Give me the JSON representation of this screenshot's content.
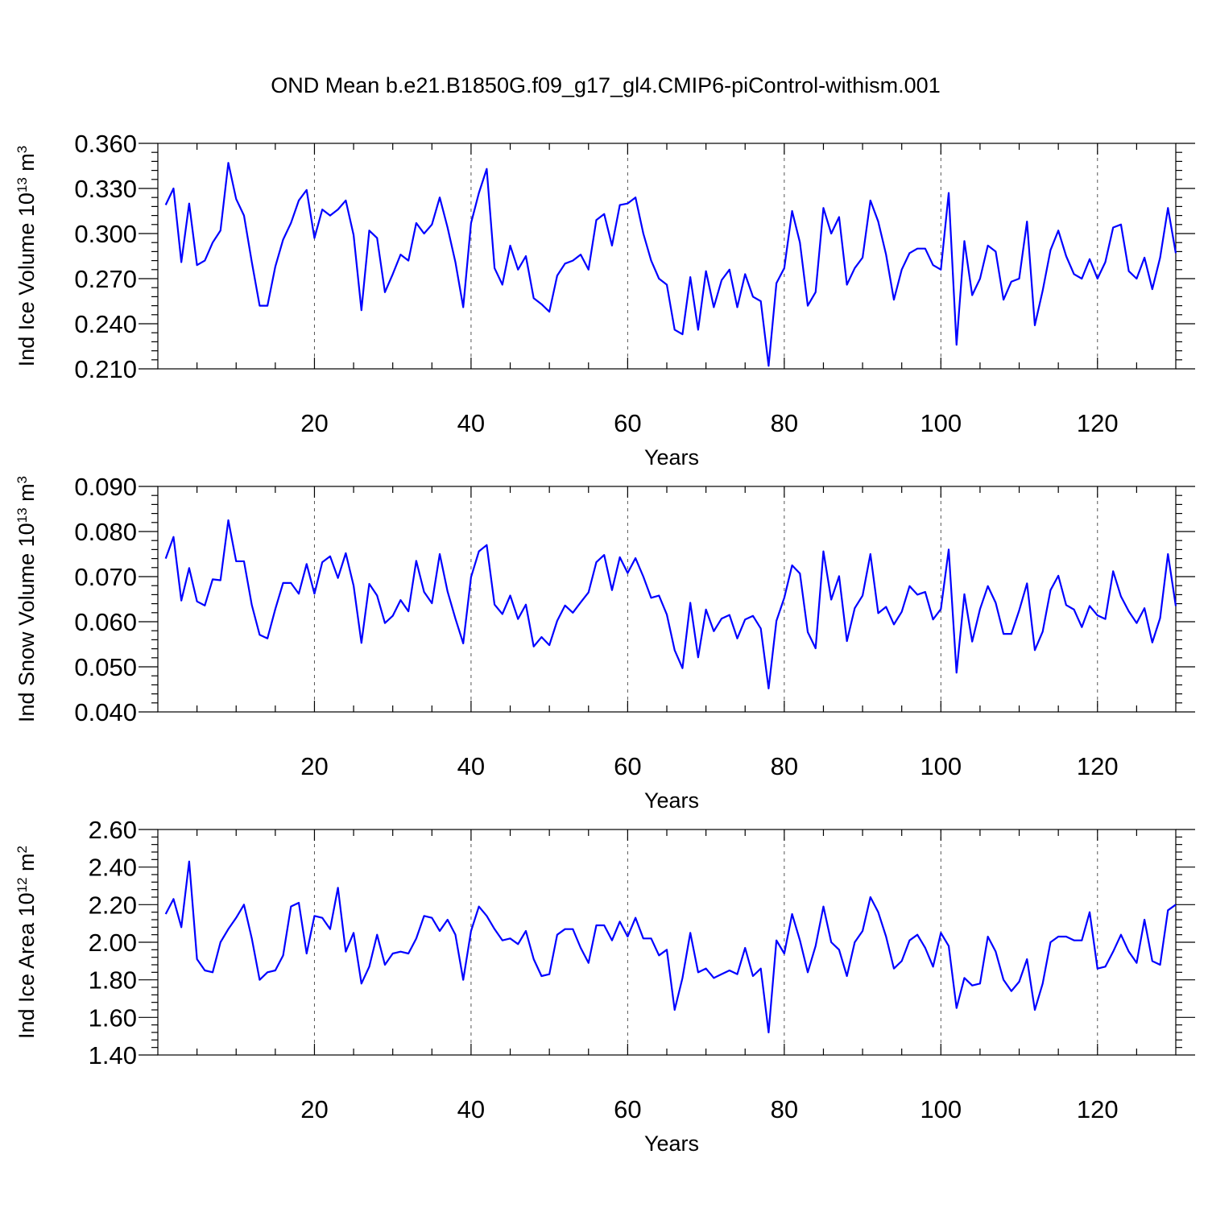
{
  "title": "OND Mean b.e21.B1850G.f09_g17_gl4.CMIP6-piControl-withism.001",
  "colors": {
    "line": "#0000ff",
    "axis": "#000000",
    "grid": "#555555"
  },
  "chart_data": [
    {
      "type": "line",
      "xlabel": "Years",
      "ylabel": {
        "base": "Ind Ice Volume 10",
        "exp1": "13",
        "unit": " m",
        "exp2": "3"
      },
      "xlim": [
        0,
        130
      ],
      "ylim": [
        0.21,
        0.36
      ],
      "xticks": [
        20,
        40,
        60,
        80,
        100,
        120
      ],
      "yticks": [
        0.21,
        0.24,
        0.27,
        0.3,
        0.33,
        0.36
      ],
      "ytick_labels": [
        "0.210",
        "0.240",
        "0.270",
        "0.300",
        "0.330",
        "0.360"
      ],
      "grid": "vertical dashed at major x ticks",
      "x_start": 1,
      "values": [
        0.319,
        0.33,
        0.281,
        0.32,
        0.279,
        0.282,
        0.294,
        0.302,
        0.347,
        0.323,
        0.312,
        0.281,
        0.252,
        0.252,
        0.278,
        0.296,
        0.307,
        0.322,
        0.329,
        0.297,
        0.316,
        0.312,
        0.316,
        0.322,
        0.299,
        0.249,
        0.302,
        0.297,
        0.261,
        0.273,
        0.286,
        0.282,
        0.307,
        0.3,
        0.306,
        0.324,
        0.304,
        0.281,
        0.251,
        0.307,
        0.327,
        0.343,
        0.277,
        0.266,
        0.292,
        0.276,
        0.285,
        0.257,
        0.253,
        0.248,
        0.272,
        0.28,
        0.282,
        0.286,
        0.276,
        0.309,
        0.313,
        0.292,
        0.319,
        0.32,
        0.324,
        0.3,
        0.282,
        0.27,
        0.266,
        0.236,
        0.233,
        0.271,
        0.236,
        0.275,
        0.251,
        0.269,
        0.276,
        0.251,
        0.273,
        0.258,
        0.255,
        0.212,
        0.267,
        0.277,
        0.315,
        0.294,
        0.252,
        0.261,
        0.317,
        0.3,
        0.311,
        0.266,
        0.277,
        0.284,
        0.322,
        0.308,
        0.286,
        0.256,
        0.276,
        0.287,
        0.29,
        0.29,
        0.279,
        0.276,
        0.327,
        0.226,
        0.295,
        0.259,
        0.27,
        0.292,
        0.288,
        0.256,
        0.268,
        0.27,
        0.308,
        0.239,
        0.262,
        0.289,
        0.302,
        0.285,
        0.273,
        0.27,
        0.283,
        0.27,
        0.281,
        0.304,
        0.306,
        0.275,
        0.27,
        0.284,
        0.263,
        0.284,
        0.317,
        0.287
      ]
    },
    {
      "type": "line",
      "xlabel": "Years",
      "ylabel": {
        "base": "Ind Snow Volume 10",
        "exp1": "13",
        "unit": " m",
        "exp2": "3"
      },
      "xlim": [
        0,
        130
      ],
      "ylim": [
        0.04,
        0.09
      ],
      "xticks": [
        20,
        40,
        60,
        80,
        100,
        120
      ],
      "yticks": [
        0.04,
        0.05,
        0.06,
        0.07,
        0.08,
        0.09
      ],
      "ytick_labels": [
        "0.040",
        "0.050",
        "0.060",
        "0.070",
        "0.080",
        "0.090"
      ],
      "grid": "vertical dashed at major x ticks",
      "x_start": 1,
      "values": [
        0.074,
        0.0788,
        0.0647,
        0.0719,
        0.0645,
        0.0636,
        0.0694,
        0.0692,
        0.0825,
        0.0734,
        0.0734,
        0.0637,
        0.0571,
        0.0563,
        0.0628,
        0.0686,
        0.0686,
        0.0662,
        0.0728,
        0.0662,
        0.0732,
        0.0745,
        0.0697,
        0.0752,
        0.068,
        0.0553,
        0.0684,
        0.0658,
        0.0597,
        0.0613,
        0.0648,
        0.0623,
        0.0735,
        0.0666,
        0.0641,
        0.075,
        0.0667,
        0.0607,
        0.0552,
        0.0699,
        0.0756,
        0.077,
        0.0638,
        0.0617,
        0.0658,
        0.0606,
        0.0638,
        0.0545,
        0.0566,
        0.0548,
        0.0602,
        0.0636,
        0.062,
        0.0643,
        0.0665,
        0.0732,
        0.0748,
        0.067,
        0.0743,
        0.0708,
        0.0741,
        0.07,
        0.0653,
        0.0658,
        0.0616,
        0.0537,
        0.0497,
        0.0642,
        0.0521,
        0.0627,
        0.0579,
        0.0607,
        0.0615,
        0.0563,
        0.0605,
        0.0613,
        0.0585,
        0.0452,
        0.0602,
        0.0653,
        0.0725,
        0.0707,
        0.0577,
        0.0541,
        0.0756,
        0.0649,
        0.0701,
        0.0557,
        0.063,
        0.0658,
        0.075,
        0.0619,
        0.0633,
        0.0594,
        0.0622,
        0.0679,
        0.066,
        0.0666,
        0.0605,
        0.0628,
        0.076,
        0.0487,
        0.0661,
        0.0556,
        0.0628,
        0.0679,
        0.0642,
        0.0573,
        0.0573,
        0.0625,
        0.0685,
        0.0537,
        0.0578,
        0.067,
        0.0702,
        0.0637,
        0.0627,
        0.0588,
        0.0635,
        0.0614,
        0.0606,
        0.0712,
        0.0656,
        0.0623,
        0.0597,
        0.063,
        0.0554,
        0.0608,
        0.075,
        0.0635
      ]
    },
    {
      "type": "line",
      "xlabel": "Years",
      "ylabel": {
        "base": "Ind Ice Area 10",
        "exp1": "12",
        "unit": " m",
        "exp2": "2"
      },
      "xlim": [
        0,
        130
      ],
      "ylim": [
        1.4,
        2.6
      ],
      "xticks": [
        20,
        40,
        60,
        80,
        100,
        120
      ],
      "yticks": [
        1.4,
        1.6,
        1.8,
        2.0,
        2.2,
        2.4,
        2.6
      ],
      "ytick_labels": [
        "1.40",
        "1.60",
        "1.80",
        "2.00",
        "2.20",
        "2.40",
        "2.60"
      ],
      "grid": "vertical dashed at major x ticks",
      "x_start": 1,
      "values": [
        2.15,
        2.23,
        2.08,
        2.43,
        1.91,
        1.85,
        1.84,
        2.0,
        2.07,
        2.13,
        2.2,
        2.02,
        1.8,
        1.84,
        1.85,
        1.93,
        2.19,
        2.21,
        1.94,
        2.14,
        2.13,
        2.07,
        2.29,
        1.95,
        2.05,
        1.78,
        1.87,
        2.04,
        1.88,
        1.94,
        1.95,
        1.94,
        2.02,
        2.14,
        2.13,
        2.06,
        2.12,
        2.04,
        1.8,
        2.06,
        2.19,
        2.14,
        2.07,
        2.01,
        2.02,
        1.99,
        2.06,
        1.91,
        1.82,
        1.83,
        2.04,
        2.07,
        2.07,
        1.97,
        1.89,
        2.09,
        2.09,
        2.01,
        2.11,
        2.03,
        2.13,
        2.02,
        2.02,
        1.93,
        1.96,
        1.64,
        1.81,
        2.05,
        1.84,
        1.86,
        1.81,
        1.83,
        1.85,
        1.83,
        1.97,
        1.82,
        1.86,
        1.52,
        2.01,
        1.94,
        2.15,
        2.01,
        1.84,
        1.98,
        2.19,
        2.0,
        1.96,
        1.82,
        2.0,
        2.06,
        2.24,
        2.16,
        2.03,
        1.86,
        1.9,
        2.01,
        2.04,
        1.97,
        1.87,
        2.05,
        1.98,
        1.65,
        1.81,
        1.77,
        1.78,
        2.03,
        1.95,
        1.8,
        1.74,
        1.79,
        1.91,
        1.64,
        1.78,
        2.0,
        2.03,
        2.03,
        2.01,
        2.01,
        2.16,
        1.86,
        1.87,
        1.95,
        2.04,
        1.95,
        1.89,
        2.12,
        1.9,
        1.88,
        2.17,
        2.2
      ]
    }
  ]
}
